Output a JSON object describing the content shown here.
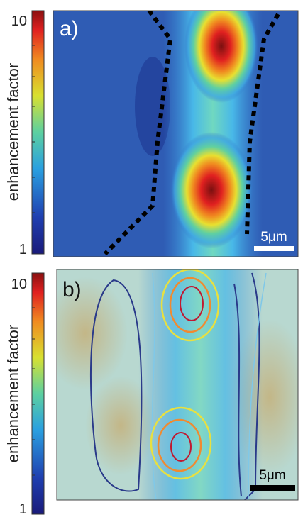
{
  "panels": [
    {
      "label": "a)",
      "colorbar": {
        "title": "enhancement factor",
        "ticks": [
          "10",
          "1"
        ]
      },
      "scale_bar": "5μm"
    },
    {
      "label": "b)",
      "colorbar": {
        "title": "enhancement factor",
        "ticks": [
          "10",
          "1"
        ]
      },
      "scale_bar": "5μm"
    }
  ]
}
